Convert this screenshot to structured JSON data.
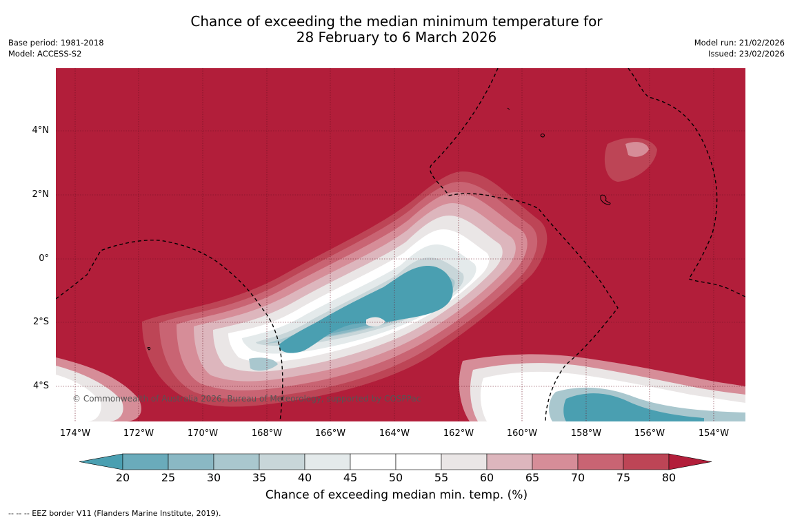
{
  "header": {
    "title_line1": "Chance of exceeding the median minimum temperature for",
    "title_line2": "28 February to 6 March 2026",
    "base_period": "Base period: 1981-2018",
    "model": "Model: ACCESS-S2",
    "model_run": "Model run: 21/02/2026",
    "issued": "Issued: 23/02/2026"
  },
  "map": {
    "latitude_labels": [
      "4°N",
      "2°N",
      "0°",
      "2°S",
      "4°S"
    ],
    "longitude_labels": [
      "174°W",
      "172°W",
      "170°W",
      "168°W",
      "166°W",
      "164°W",
      "162°W",
      "160°W",
      "158°W",
      "156°W",
      "154°W"
    ],
    "copyright": "© Commonwealth of Australia 2026, Bureau of Meteorology, supported by COSPPac"
  },
  "colorbar": {
    "ticks": [
      "20",
      "25",
      "30",
      "35",
      "40",
      "45",
      "50",
      "55",
      "60",
      "65",
      "70",
      "75",
      "80"
    ],
    "colors": [
      "#4a9fb1",
      "#6aabbb",
      "#8ab8c4",
      "#a9c7ce",
      "#c8d6d9",
      "#e4eaeb",
      "#ffffff",
      "#ffffff",
      "#eae6e6",
      "#ddb6bd",
      "#d68d98",
      "#c96473",
      "#bd4556",
      "#b21e3a"
    ],
    "title": "Chance of exceeding median min. temp. (%)"
  },
  "footnote": "--  --  -- EEZ border V11 (Flanders Marine Institute, 2019)."
}
